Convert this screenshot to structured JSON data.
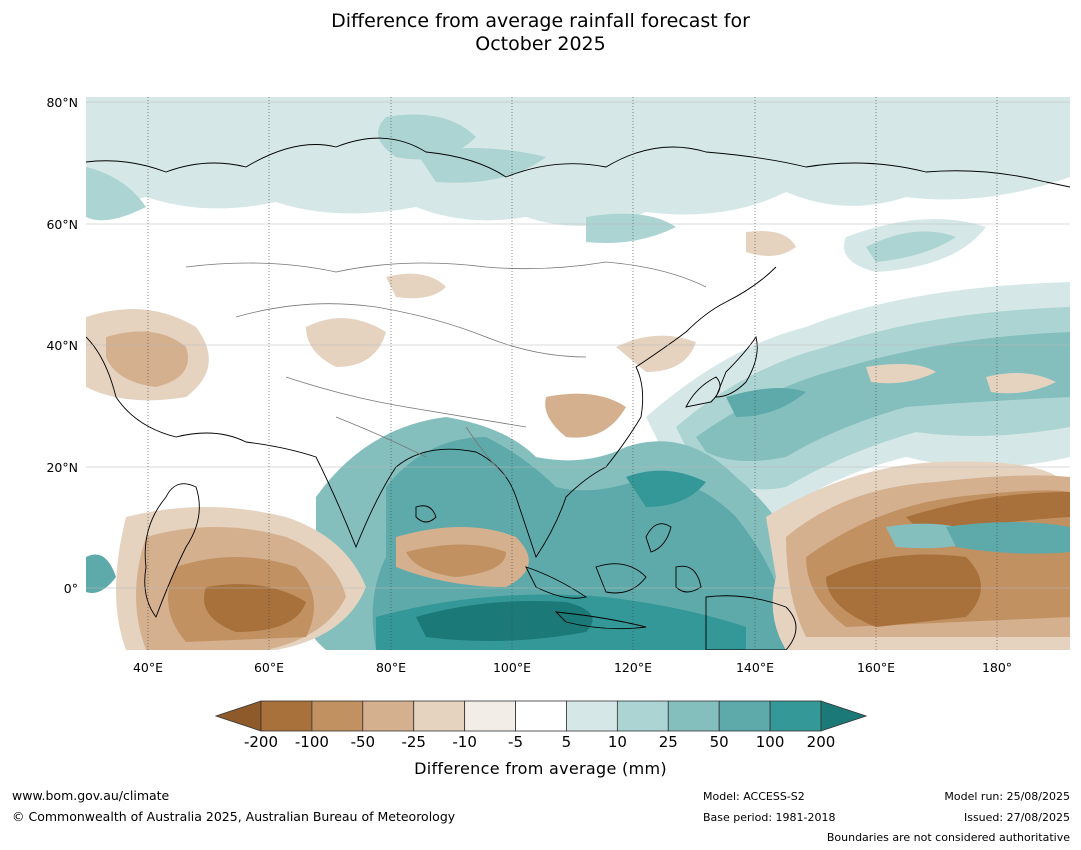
{
  "title_line1": "Difference from average rainfall forecast for",
  "title_line2": "October 2025",
  "lat_labels": [
    "80°N",
    "60°N",
    "40°N",
    "20°N",
    "0°"
  ],
  "lon_labels": [
    "40°E",
    "60°E",
    "80°E",
    "100°E",
    "120°E",
    "140°E",
    "160°E",
    "180°"
  ],
  "colorbar": {
    "title": "Difference from average (mm)",
    "ticks": [
      "-200",
      "-100",
      "-50",
      "-25",
      "-10",
      "-5",
      "5",
      "10",
      "25",
      "50",
      "100",
      "200"
    ],
    "colors": [
      "#8f5a2a",
      "#a8703a",
      "#c19162",
      "#d4b08f",
      "#e5d3c0",
      "#f2ede6",
      "#ffffff",
      "#d5e8e7",
      "#acd4d3",
      "#84bfbe",
      "#5eaaaa",
      "#339897",
      "#1b7a78"
    ]
  },
  "footer": {
    "website": "www.bom.gov.au/climate",
    "copyright": "© Commonwealth of Australia 2025, Australian Bureau of Meteorology",
    "model": "Model: ACCESS-S2",
    "base_period": "Base period: 1981-2018",
    "model_run": "Model run: 25/08/2025",
    "issued": "Issued: 27/08/2025",
    "disclaimer": "Boundaries are not considered authoritative"
  }
}
